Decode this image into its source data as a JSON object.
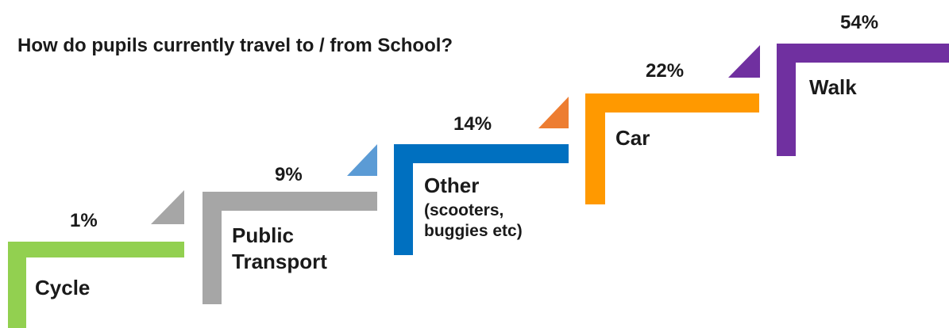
{
  "chart_data": {
    "type": "bar",
    "title": "How do pupils currently travel to / from School?",
    "categories": [
      "Cycle",
      "Public Transport",
      "Other (scooters, buggies etc)",
      "Car",
      "Walk"
    ],
    "values": [
      1,
      9,
      14,
      22,
      54
    ],
    "value_labels": [
      "1%",
      "9%",
      "14%",
      "22%",
      "54%"
    ],
    "label_lines": [
      [
        "Cycle"
      ],
      [
        "Public",
        "Transport"
      ],
      [
        "Other",
        "(scooters,",
        "buggies etc)"
      ],
      [
        "Car"
      ],
      [
        "Walk"
      ]
    ],
    "colors": [
      "#92d050",
      "#a6a6a6",
      "#0070c0",
      "#ff9900",
      "#7030a0"
    ],
    "triangle_colors": [
      "#a6a6a6",
      "#5b9bd5",
      "#ed7d31",
      "#7030a0",
      "#7030a0"
    ],
    "style": "ascending staircase of L-shaped steps, one per category"
  }
}
